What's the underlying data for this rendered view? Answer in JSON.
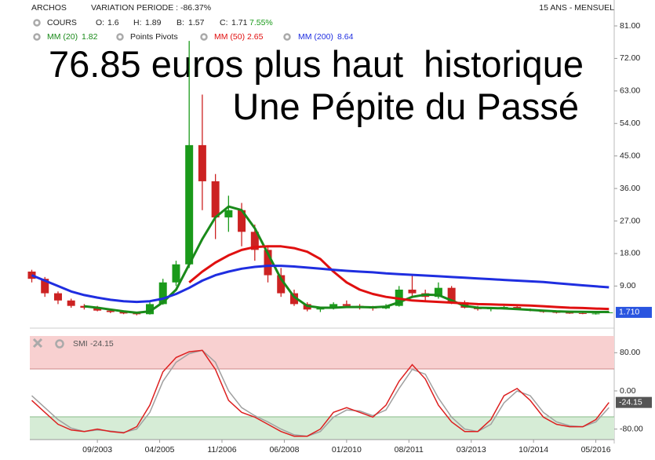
{
  "chart_data": [
    {
      "type": "candlestick",
      "title": "76.85 euros plus haut  historique",
      "subtitle": "Une Pépite du Passé",
      "instrument": "ARCHOS",
      "period_change": "VARIATION PERIODE : -86.37%",
      "range_label": "15 ANS - MENSUEL",
      "quote": {
        "name": "COURS",
        "items": [
          {
            "label": "O:",
            "value": 1.6
          },
          {
            "label": "H:",
            "value": 1.89
          },
          {
            "label": "B:",
            "value": 1.57
          },
          {
            "label": "C:",
            "value": 1.71
          }
        ],
        "change": "7.55%"
      },
      "pivots_label": "Points Pivots",
      "x": [
        2002,
        2002.333,
        2002.667,
        2003,
        2003.333,
        2003.667,
        2004,
        2004.333,
        2004.667,
        2005,
        2005.333,
        2005.667,
        2006,
        2006.333,
        2006.667,
        2007,
        2007.333,
        2007.667,
        2008,
        2008.333,
        2008.667,
        2009,
        2009.333,
        2009.667,
        2010,
        2010.333,
        2010.667,
        2011,
        2011.333,
        2011.667,
        2012,
        2012.333,
        2012.667,
        2013,
        2013.333,
        2013.667,
        2014,
        2014.333,
        2014.667,
        2015,
        2015.333,
        2015.667,
        2016,
        2016.333,
        2016.667
      ],
      "xlim": [
        2001.95,
        2016.8
      ],
      "xticks": [
        {
          "value": 2003.667,
          "label": "09/2003"
        },
        {
          "value": 2005.25,
          "label": "04/2005"
        },
        {
          "value": 2006.833,
          "label": "11/2006"
        },
        {
          "value": 2008.417,
          "label": "06/2008"
        },
        {
          "value": 2010,
          "label": "01/2010"
        },
        {
          "value": 2011.583,
          "label": "08/2011"
        },
        {
          "value": 2013.167,
          "label": "03/2013"
        },
        {
          "value": 2014.75,
          "label": "10/2014"
        },
        {
          "value": 2016.333,
          "label": "05/2016"
        }
      ],
      "ylim": [
        -2,
        86
      ],
      "yticks": [
        {
          "value": 9,
          "label": "9.00"
        },
        {
          "value": 18,
          "label": "18.00"
        },
        {
          "value": 27,
          "label": "27.00"
        },
        {
          "value": 36,
          "label": "36.00"
        },
        {
          "value": 45,
          "label": "45.00"
        },
        {
          "value": 54,
          "label": "54.00"
        },
        {
          "value": 63,
          "label": "63.00"
        },
        {
          "value": 72,
          "label": "72.00"
        },
        {
          "value": 81,
          "label": "81.00"
        }
      ],
      "ohlc": {
        "color_up": "#1a9a1a",
        "color_down": "#cc2222",
        "open": [
          13,
          11,
          7,
          5,
          3.5,
          3,
          2.2,
          1.8,
          1.4,
          1.2,
          4,
          10,
          15,
          48,
          38,
          28,
          30,
          24,
          19,
          12,
          7,
          4,
          2.5,
          2.8,
          4,
          3.5,
          3,
          2.8,
          3.5,
          8,
          7,
          6,
          8.5,
          4.5,
          3,
          2.6,
          2.8,
          3.2,
          2.6,
          2.2,
          1.8,
          1.6,
          1.5,
          1.3,
          1.6
        ],
        "high": [
          13.5,
          11.5,
          7.5,
          5.5,
          4,
          3.5,
          2.6,
          2,
          1.8,
          4.5,
          11,
          16,
          76.85,
          62,
          40,
          34,
          32,
          26,
          20,
          14,
          8,
          4.5,
          3,
          4.5,
          5,
          4,
          3.5,
          4,
          9,
          12,
          8,
          10,
          9,
          5,
          3.5,
          3,
          3.5,
          3.4,
          2.8,
          2.4,
          2,
          1.9,
          1.7,
          1.6,
          1.89
        ],
        "low": [
          10,
          6,
          4,
          3,
          2.5,
          2,
          1.5,
          1.2,
          0.9,
          1.1,
          3.8,
          9,
          14,
          30,
          22,
          24,
          20,
          16,
          10,
          6,
          3.5,
          2,
          1.8,
          2.5,
          3,
          2.5,
          2.2,
          2.6,
          3.3,
          6,
          5,
          5.5,
          4,
          2.8,
          2.2,
          2,
          2.5,
          2.4,
          2,
          1.6,
          1.4,
          1.3,
          1.2,
          1.1,
          1.57
        ],
        "close": [
          11,
          7,
          5,
          3.5,
          3,
          2.2,
          1.8,
          1.4,
          1.2,
          4,
          10,
          15,
          48,
          38,
          28,
          30,
          24,
          19,
          12,
          7,
          4,
          2.5,
          2.8,
          4,
          3.5,
          3,
          2.8,
          3.5,
          8,
          7,
          6,
          8.5,
          4.5,
          3,
          2.6,
          2.8,
          3.2,
          2.6,
          2.2,
          1.8,
          1.6,
          1.5,
          1.3,
          1.4,
          1.71
        ]
      },
      "series": [
        {
          "name": "MM (20)",
          "legend_value": 1.82,
          "color": "#1a8a1a",
          "values": [
            null,
            null,
            null,
            null,
            3.4,
            3,
            2.5,
            2,
            1.6,
            2,
            4.5,
            8,
            15,
            22,
            28,
            31,
            30,
            25,
            18,
            11,
            6,
            3.5,
            3,
            3,
            3.2,
            3.2,
            3.1,
            3.3,
            4.5,
            6,
            6.6,
            6.5,
            5,
            3.5,
            3,
            2.9,
            2.8,
            2.6,
            2.4,
            2.2,
            2,
            1.9,
            1.85,
            1.8,
            1.82
          ]
        },
        {
          "name": "MM (50)",
          "legend_value": 2.65,
          "color": "#e01010",
          "values": [
            null,
            null,
            null,
            null,
            null,
            null,
            null,
            null,
            null,
            null,
            null,
            null,
            10,
            13,
            15.5,
            17.5,
            19,
            19.8,
            20,
            20,
            19.5,
            18.5,
            16.5,
            13,
            10,
            8,
            6.8,
            6,
            5.5,
            5,
            4.8,
            4.6,
            4.4,
            4.2,
            4,
            3.9,
            3.8,
            3.7,
            3.6,
            3.4,
            3.2,
            3,
            2.9,
            2.75,
            2.65
          ]
        },
        {
          "name": "MM (200)",
          "legend_value": 8.64,
          "color": "#1f2ee0",
          "values": [
            12,
            10.5,
            9,
            7.5,
            6.5,
            5.8,
            5.2,
            4.8,
            4.6,
            4.8,
            5.5,
            6.8,
            8.5,
            10.5,
            12,
            13,
            13.8,
            14.3,
            14.6,
            14.6,
            14.4,
            14.1,
            13.8,
            13.5,
            13.2,
            13,
            12.8,
            12.5,
            12.3,
            12.1,
            11.9,
            11.7,
            11.5,
            11.3,
            11.1,
            10.9,
            10.7,
            10.5,
            10.3,
            10.1,
            9.8,
            9.5,
            9.2,
            8.9,
            8.64
          ]
        }
      ],
      "last_price": {
        "value": 1.71,
        "label": "1.710"
      }
    },
    {
      "type": "line",
      "name": "SMI",
      "legend_value": -24.15,
      "x": [
        2002,
        2002.333,
        2002.667,
        2003,
        2003.333,
        2003.667,
        2004,
        2004.333,
        2004.667,
        2005,
        2005.333,
        2005.667,
        2006,
        2006.333,
        2006.667,
        2007,
        2007.333,
        2007.667,
        2008,
        2008.333,
        2008.667,
        2009,
        2009.333,
        2009.667,
        2010,
        2010.333,
        2010.667,
        2011,
        2011.333,
        2011.667,
        2012,
        2012.333,
        2012.667,
        2013,
        2013.333,
        2013.667,
        2014,
        2014.333,
        2014.667,
        2015,
        2015.333,
        2015.667,
        2016,
        2016.333,
        2016.667
      ],
      "xlim": [
        2001.95,
        2016.8
      ],
      "ylim": [
        -102,
        120
      ],
      "yticks": [
        {
          "value": 80,
          "label": "80.00"
        },
        {
          "value": 0,
          "label": "0.00"
        },
        {
          "value": -80,
          "label": "-80.00"
        }
      ],
      "series": [
        {
          "color": "#a0a0a0",
          "values": [
            -10,
            -35,
            -60,
            -78,
            -85,
            -82,
            -84,
            -87,
            -80,
            -45,
            20,
            60,
            78,
            85,
            60,
            0,
            -35,
            -52,
            -65,
            -80,
            -92,
            -95,
            -85,
            -55,
            -40,
            -42,
            -52,
            -40,
            5,
            45,
            35,
            -15,
            -55,
            -80,
            -85,
            -70,
            -25,
            0,
            -10,
            -45,
            -65,
            -73,
            -75,
            -65,
            -35
          ]
        },
        {
          "color": "#dd1f1f",
          "values": [
            -20,
            -45,
            -70,
            -82,
            -85,
            -80,
            -85,
            -88,
            -75,
            -30,
            40,
            70,
            82,
            85,
            45,
            -20,
            -45,
            -55,
            -70,
            -85,
            -95,
            -95,
            -80,
            -45,
            -35,
            -45,
            -55,
            -30,
            20,
            55,
            25,
            -30,
            -65,
            -85,
            -85,
            -60,
            -10,
            5,
            -20,
            -55,
            -70,
            -75,
            -75,
            -60,
            -24.15
          ]
        }
      ],
      "last_value": {
        "value": -24.15,
        "label": "-24.15"
      }
    }
  ]
}
